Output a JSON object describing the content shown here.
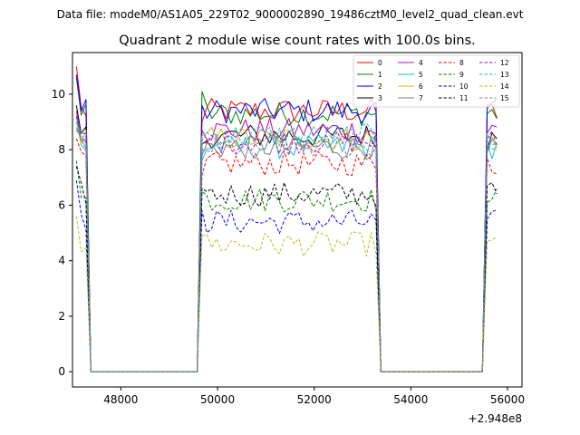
{
  "suptitle": "Data file: modeM0/AS1A05_229T02_9000002890_19486cztM0_level2_quad_clean.evt",
  "chart_data": {
    "type": "line",
    "title": "Quadrant 2 module wise count rates with 100.0s bins.",
    "xlabel": "",
    "ylabel": "",
    "x_offset_label": "+2.948e8",
    "x_offset": 294800000,
    "xlim": [
      47000,
      56300
    ],
    "ylim": [
      -0.55,
      11.5
    ],
    "x_ticks": [
      48000,
      50000,
      52000,
      54000,
      56000
    ],
    "x_tick_labels": [
      "48000",
      "50000",
      "52000",
      "54000",
      "56000"
    ],
    "y_ticks": [
      0,
      2,
      4,
      6,
      8,
      10
    ],
    "y_tick_labels": [
      "0",
      "2",
      "4",
      "6",
      "8",
      "10"
    ],
    "grid": false,
    "legend_position": "top-right",
    "segments": [
      {
        "start": 47080,
        "end": 47280
      },
      {
        "start": 49680,
        "end": 53280
      },
      {
        "start": 55580,
        "end": 55780
      }
    ],
    "bin_width": 100,
    "gap_value": 0,
    "series": [
      {
        "name": "0",
        "color": "#ff0000",
        "style": "solid",
        "level": 9.4,
        "segment_starts": [
          11.0,
          9.0,
          9.6
        ]
      },
      {
        "name": "1",
        "color": "#008000",
        "style": "solid",
        "level": 9.3,
        "segment_starts": [
          10.6,
          10.1,
          9.3
        ]
      },
      {
        "name": "2",
        "color": "#0000ff",
        "style": "solid",
        "level": 9.4,
        "segment_starts": [
          10.7,
          9.6,
          9.5
        ]
      },
      {
        "name": "3",
        "color": "#000000",
        "style": "solid",
        "level": 8.5,
        "segment_starts": [
          9.6,
          8.2,
          8.0
        ]
      },
      {
        "name": "4",
        "color": "#bf00bf",
        "style": "solid",
        "level": 8.7,
        "segment_starts": [
          9.4,
          8.7,
          8.6
        ]
      },
      {
        "name": "5",
        "color": "#17becf",
        "style": "solid",
        "level": 8.1,
        "segment_starts": [
          9.2,
          7.6,
          8.3
        ]
      },
      {
        "name": "6",
        "color": "#bcbd22",
        "style": "solid",
        "level": 8.4,
        "segment_starts": [
          9.0,
          8.5,
          8.5
        ]
      },
      {
        "name": "7",
        "color": "#7f7f7f",
        "style": "solid",
        "level": 8.1,
        "segment_starts": [
          8.8,
          7.8,
          7.9
        ]
      },
      {
        "name": "8",
        "color": "#ff0000",
        "style": "dashed",
        "level": 7.5,
        "segment_starts": [
          8.4,
          7.1,
          7.7
        ]
      },
      {
        "name": "9",
        "color": "#008000",
        "style": "dashed",
        "level": 6.2,
        "segment_starts": [
          7.6,
          6.5,
          6.1
        ]
      },
      {
        "name": "10",
        "color": "#0000ff",
        "style": "dashed",
        "level": 5.4,
        "segment_starts": [
          6.9,
          5.8,
          5.5
        ]
      },
      {
        "name": "11",
        "color": "#000000",
        "style": "dashed",
        "level": 6.4,
        "segment_starts": [
          7.4,
          6.6,
          6.7
        ]
      },
      {
        "name": "12",
        "color": "#bf00bf",
        "style": "dashed",
        "level": 8.3,
        "segment_starts": [
          9.2,
          8.2,
          8.4
        ]
      },
      {
        "name": "13",
        "color": "#17becf",
        "style": "dashed",
        "level": 8.5,
        "segment_starts": [
          9.0,
          8.3,
          8.6
        ]
      },
      {
        "name": "14",
        "color": "#bcbd22",
        "style": "dashed",
        "level": 4.6,
        "segment_starts": [
          5.6,
          4.9,
          4.7
        ]
      },
      {
        "name": "15",
        "color": "#7f7f7f",
        "style": "dashed",
        "level": 8.1,
        "segment_starts": [
          8.7,
          8.0,
          8.1
        ]
      }
    ]
  }
}
